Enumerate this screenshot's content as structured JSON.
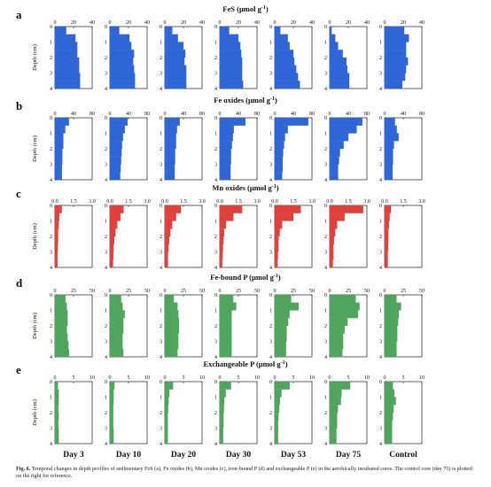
{
  "figure": {
    "caption_label": "Fig. 6.",
    "caption_text": "Temporal changes in depth profiles of sedimentary FeS (a), Fe oxides (b), Mn oxides (c), iron-bound P (d) and exchangeable P (e) in the aerobically incubated cores. The control core (day 75) is plotted on the right for reference.",
    "column_labels": [
      "Day 3",
      "Day 10",
      "Day 20",
      "Day 30",
      "Day 53",
      "Day 75",
      "Control"
    ],
    "depth_axis_label": "Depth (cm)",
    "depth_ticks": [
      "0",
      "1",
      "2",
      "3",
      "4"
    ]
  },
  "chart_data": [
    {
      "type": "bar",
      "panel_letter": "a",
      "title": "FeS (μmol g",
      "title_sup": "-1",
      "title_close": ")",
      "color": "#2e66d8",
      "xlim": [
        0,
        40
      ],
      "xticks": [
        "0",
        "20",
        "40"
      ],
      "depth_bins": [
        "0-0.5",
        "0.5-1",
        "1-1.5",
        "1.5-2",
        "2-2.5",
        "2.5-3",
        "3-3.5",
        "3.5-4"
      ],
      "series": [
        {
          "name": "Day 3",
          "values": [
            12,
            22,
            24,
            24,
            26,
            26,
            27,
            27
          ]
        },
        {
          "name": "Day 10",
          "values": [
            10,
            21,
            23,
            26,
            25,
            26,
            27,
            27
          ]
        },
        {
          "name": "Day 20",
          "values": [
            8,
            14,
            20,
            22,
            21,
            23,
            23,
            23
          ]
        },
        {
          "name": "Day 30",
          "values": [
            10,
            20,
            22,
            23,
            24,
            24,
            24,
            25
          ]
        },
        {
          "name": "Day 53",
          "values": [
            6,
            14,
            16,
            20,
            21,
            23,
            25,
            27
          ]
        },
        {
          "name": "Day 75",
          "values": [
            2,
            6,
            9,
            14,
            18,
            19,
            21,
            21
          ]
        },
        {
          "name": "Control",
          "values": [
            21,
            26,
            23,
            23,
            25,
            23,
            22,
            19
          ]
        }
      ]
    },
    {
      "type": "bar",
      "panel_letter": "b",
      "title": "Fe oxides (μmol g",
      "title_sup": "-1",
      "title_close": ")",
      "color": "#2e66d8",
      "xlim": [
        0,
        80
      ],
      "xticks": [
        "0",
        "40",
        "80"
      ],
      "depth_bins": [
        "0-0.5",
        "0.5-1",
        "1-1.5",
        "1.5-2",
        "2-2.5",
        "2.5-3",
        "3-3.5",
        "3.5-4"
      ],
      "series": [
        {
          "name": "Day 3",
          "values": [
            30,
            22,
            18,
            18,
            16,
            16,
            15,
            15
          ]
        },
        {
          "name": "Day 10",
          "values": [
            38,
            32,
            28,
            26,
            25,
            24,
            23,
            22
          ]
        },
        {
          "name": "Day 20",
          "values": [
            32,
            26,
            24,
            24,
            22,
            22,
            21,
            21
          ]
        },
        {
          "name": "Day 30",
          "values": [
            55,
            30,
            28,
            26,
            24,
            24,
            23,
            23
          ]
        },
        {
          "name": "Day 53",
          "values": [
            72,
            28,
            22,
            20,
            18,
            17,
            17,
            16
          ]
        },
        {
          "name": "Day 75",
          "values": [
            70,
            58,
            40,
            30,
            22,
            20,
            18,
            18
          ]
        },
        {
          "name": "Control",
          "values": [
            22,
            26,
            30,
            20,
            18,
            18,
            17,
            17
          ]
        }
      ]
    },
    {
      "type": "bar",
      "panel_letter": "c",
      "title": "Mn oxides (μmol g",
      "title_sup": "-1",
      "title_close": ")",
      "color": "#e0413b",
      "xlim": [
        0,
        3
      ],
      "xticks": [
        "0.0",
        "1.5",
        "3.0"
      ],
      "depth_bins": [
        "0-0.5",
        "0.5-1",
        "1-1.5",
        "1.5-2",
        "2-2.5",
        "2.5-3",
        "3-3.5",
        "3.5-4"
      ],
      "series": [
        {
          "name": "Day 3",
          "values": [
            0.55,
            0.35,
            0.3,
            0.25,
            0.25,
            0.22,
            0.2,
            0.2
          ]
        },
        {
          "name": "Day 10",
          "values": [
            1.1,
            0.85,
            0.6,
            0.45,
            0.35,
            0.3,
            0.28,
            0.25
          ]
        },
        {
          "name": "Day 20",
          "values": [
            1.3,
            0.9,
            0.6,
            0.45,
            0.35,
            0.3,
            0.25,
            0.25
          ]
        },
        {
          "name": "Day 30",
          "values": [
            1.8,
            1.1,
            0.5,
            0.35,
            0.3,
            0.25,
            0.22,
            0.2
          ]
        },
        {
          "name": "Day 53",
          "values": [
            2.1,
            1.5,
            0.6,
            0.4,
            0.3,
            0.3,
            0.25,
            0.22
          ]
        },
        {
          "name": "Day 75",
          "values": [
            2.7,
            1.2,
            0.6,
            0.45,
            0.35,
            0.3,
            0.3,
            0.25
          ]
        },
        {
          "name": "Control",
          "values": [
            0.5,
            0.4,
            0.35,
            0.3,
            0.3,
            0.28,
            0.25,
            0.25
          ]
        }
      ]
    },
    {
      "type": "bar",
      "panel_letter": "d",
      "title": "Fe-bound P (μmol g",
      "title_sup": "-1",
      "title_close": ")",
      "color": "#4fa55e",
      "xlim": [
        0,
        50
      ],
      "xticks": [
        "0",
        "25",
        "50"
      ],
      "depth_bins": [
        "0-0.5",
        "0.5-1",
        "1-1.5",
        "1.5-2",
        "2-2.5",
        "2.5-3",
        "3-3.5",
        "3.5-4"
      ],
      "series": [
        {
          "name": "Day 3",
          "values": [
            14,
            16,
            17,
            17,
            16,
            17,
            18,
            19
          ]
        },
        {
          "name": "Day 10",
          "values": [
            15,
            17,
            20,
            18,
            18,
            17,
            17,
            18
          ]
        },
        {
          "name": "Day 20",
          "values": [
            12,
            17,
            18,
            19,
            19,
            18,
            18,
            17
          ]
        },
        {
          "name": "Day 30",
          "values": [
            18,
            22,
            16,
            16,
            16,
            16,
            16,
            16
          ]
        },
        {
          "name": "Day 53",
          "values": [
            22,
            32,
            20,
            18,
            16,
            16,
            15,
            15
          ]
        },
        {
          "name": "Day 75",
          "values": [
            35,
            40,
            38,
            24,
            20,
            18,
            18,
            17
          ]
        },
        {
          "name": "Control",
          "values": [
            16,
            22,
            19,
            18,
            17,
            17,
            16,
            16
          ]
        }
      ]
    },
    {
      "type": "bar",
      "panel_letter": "e",
      "title": "Exchangeable P (μmol g",
      "title_sup": "-1",
      "title_close": ")",
      "color": "#4fa55e",
      "xlim": [
        0,
        10
      ],
      "xticks": [
        "0",
        "5",
        "10"
      ],
      "depth_bins": [
        "0-0.5",
        "0.5-1",
        "1-1.5",
        "1.5-2",
        "2-2.5",
        "2.5-3",
        "3-3.5",
        "3.5-4"
      ],
      "series": [
        {
          "name": "Day 3",
          "values": [
            0.8,
            1.0,
            1.0,
            0.9,
            1.0,
            0.9,
            1.0,
            1.0
          ]
        },
        {
          "name": "Day 10",
          "values": [
            1.2,
            1.0,
            1.0,
            0.9,
            0.9,
            0.9,
            1.0,
            1.0
          ]
        },
        {
          "name": "Day 20",
          "values": [
            2.2,
            1.2,
            1.0,
            0.9,
            0.8,
            0.8,
            0.8,
            0.8
          ]
        },
        {
          "name": "Day 30",
          "values": [
            3.0,
            1.6,
            1.2,
            1.1,
            1.0,
            1.0,
            0.9,
            0.9
          ]
        },
        {
          "name": "Day 53",
          "values": [
            4.0,
            1.8,
            1.4,
            1.2,
            1.0,
            0.9,
            0.9,
            0.9
          ]
        },
        {
          "name": "Day 75",
          "values": [
            5.5,
            3.2,
            3.0,
            2.2,
            2.0,
            2.0,
            1.8,
            1.8
          ]
        },
        {
          "name": "Control",
          "values": [
            2.2,
            2.6,
            3.0,
            2.4,
            2.2,
            2.0,
            2.0,
            2.0
          ]
        }
      ]
    }
  ]
}
